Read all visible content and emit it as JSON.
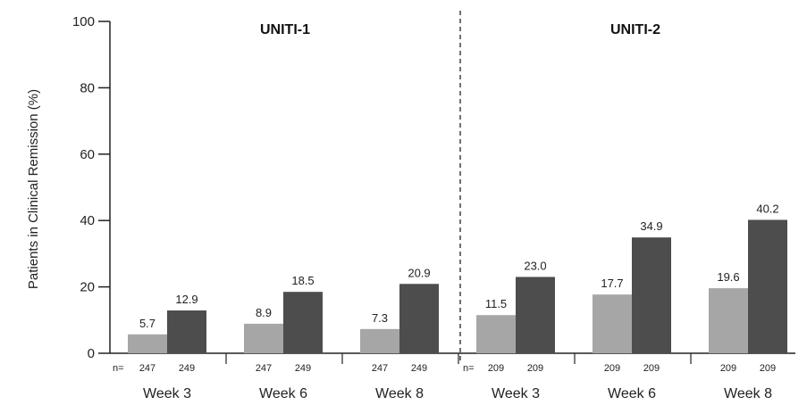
{
  "chart_data": {
    "type": "bar",
    "ylabel": "Patients in Clinical Remission (%)",
    "ylim": [
      0,
      100
    ],
    "yticks": [
      0,
      20,
      40,
      60,
      80,
      100
    ],
    "grid": false,
    "n_prefix": "n=",
    "colors": {
      "placebo": "#a6a6a6",
      "treatment": "#4d4d4d",
      "axis": "#222222"
    },
    "panels": [
      {
        "title": "UNITI-1",
        "groups": [
          {
            "label": "Week 3",
            "values": [
              5.7,
              12.9
            ],
            "value_labels": [
              "5.7",
              "12.9"
            ],
            "n": [
              "247",
              "249"
            ]
          },
          {
            "label": "Week 6",
            "values": [
              8.9,
              18.5
            ],
            "value_labels": [
              "8.9",
              "18.5"
            ],
            "n": [
              "247",
              "249"
            ]
          },
          {
            "label": "Week 8",
            "values": [
              7.3,
              20.9
            ],
            "value_labels": [
              "7.3",
              "20.9"
            ],
            "n": [
              "247",
              "249"
            ]
          }
        ]
      },
      {
        "title": "UNITI-2",
        "groups": [
          {
            "label": "Week 3",
            "values": [
              11.5,
              23.0
            ],
            "value_labels": [
              "11.5",
              "23.0"
            ],
            "n": [
              "209",
              "209"
            ]
          },
          {
            "label": "Week 6",
            "values": [
              17.7,
              34.9
            ],
            "value_labels": [
              "17.7",
              "34.9"
            ],
            "n": [
              "209",
              "209"
            ]
          },
          {
            "label": "Week 8",
            "values": [
              19.6,
              40.2
            ],
            "value_labels": [
              "19.6",
              "40.2"
            ],
            "n": [
              "209",
              "209"
            ]
          }
        ]
      }
    ]
  }
}
